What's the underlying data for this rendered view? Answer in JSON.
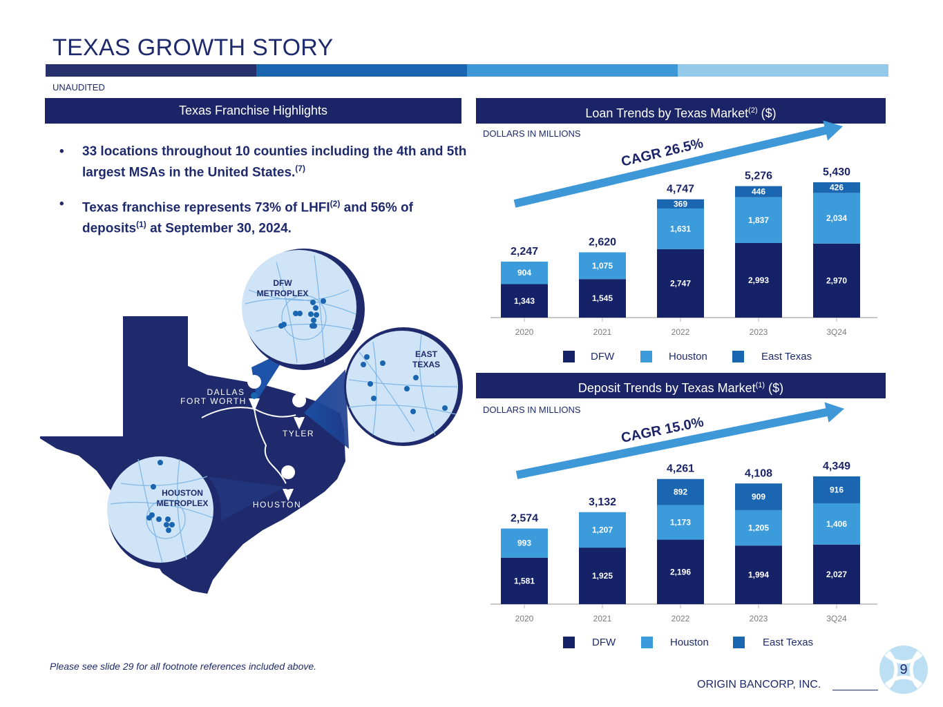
{
  "title": "TEXAS GROWTH STORY",
  "subtitle": "UNAUDITED",
  "colors": {
    "dfw": "#152267",
    "houston": "#3c9bdb",
    "east_texas": "#1b66b1",
    "navy": "#1a2466",
    "band": [
      "#26306a",
      "#1a65b0",
      "#3e97d7",
      "#94c9ea"
    ]
  },
  "left_panel": {
    "header": "Texas Franchise Highlights",
    "bullets": [
      {
        "text": "33 locations throughout 10 counties including the 4th and 5th largest MSAs in the United States.",
        "sup": "(7)"
      },
      {
        "text_a": "Texas franchise represents 73% of LHFI",
        "sup_a": "(2)",
        "text_b": " and 56% of deposits",
        "sup_b": "(1)",
        "text_c": " at September 30, 2024."
      }
    ],
    "bullet_char": "•",
    "map": {
      "cities": [
        "DALLAS",
        "FORT WORTH",
        "TYLER",
        "HOUSTON"
      ],
      "callouts": [
        {
          "line1": "DFW",
          "line2": "METROPLEX"
        },
        {
          "line1": "EAST",
          "line2": "TEXAS"
        },
        {
          "line1": "HOUSTON",
          "line2": "METROPLEX"
        }
      ]
    }
  },
  "loan_panel": {
    "header": "Loan Trends by Texas Market",
    "header_sup": "(2)",
    "header_suffix": " ($)",
    "unit": "DOLLARS IN MILLIONS",
    "cagr": "CAGR 26.5%",
    "legend": [
      "DFW",
      "Houston",
      "East Texas"
    ]
  },
  "deposit_panel": {
    "header": "Deposit Trends by Texas Market",
    "header_sup": "(1)",
    "header_suffix": " ($)",
    "unit": "DOLLARS IN MILLIONS",
    "cagr": "CAGR 15.0%",
    "legend": [
      "DFW",
      "Houston",
      "East Texas"
    ]
  },
  "chart_data": [
    {
      "type": "bar",
      "stacked": true,
      "title": "Loan Trends by Texas Market ($)",
      "categories": [
        "2020",
        "2021",
        "2022",
        "2023",
        "3Q24"
      ],
      "series": [
        {
          "name": "DFW",
          "values": [
            1343,
            1545,
            2747,
            2993,
            2970
          ],
          "labels": [
            "1,343",
            "1,545",
            "2,747",
            "2,993",
            "2,970"
          ]
        },
        {
          "name": "Houston",
          "values": [
            904,
            1075,
            1631,
            1837,
            2034
          ],
          "labels": [
            "904",
            "1,075",
            "1,631",
            "1,837",
            "2,034"
          ]
        },
        {
          "name": "East Texas",
          "values": [
            0,
            0,
            369,
            446,
            426
          ],
          "labels": [
            "",
            "",
            "369",
            "446",
            "426"
          ]
        }
      ],
      "totals": [
        "2,247",
        "2,620",
        "4,747",
        "5,276",
        "5,430"
      ],
      "ylim": [
        0,
        5430
      ]
    },
    {
      "type": "bar",
      "stacked": true,
      "title": "Deposit Trends by Texas Market ($)",
      "categories": [
        "2020",
        "2021",
        "2022",
        "2023",
        "3Q24"
      ],
      "series": [
        {
          "name": "DFW",
          "values": [
            1581,
            1925,
            2196,
            1994,
            2027
          ],
          "labels": [
            "1,581",
            "1,925",
            "2,196",
            "1,994",
            "2,027"
          ]
        },
        {
          "name": "Houston",
          "values": [
            993,
            1207,
            1173,
            1205,
            1406
          ],
          "labels": [
            "993",
            "1,207",
            "1,173",
            "1,205",
            "1,406"
          ]
        },
        {
          "name": "East Texas",
          "values": [
            0,
            0,
            892,
            909,
            916
          ],
          "labels": [
            "",
            "",
            "892",
            "909",
            "916"
          ]
        }
      ],
      "totals": [
        "2,574",
        "3,132",
        "4,261",
        "4,108",
        "4,349"
      ],
      "ylim": [
        0,
        4349
      ]
    }
  ],
  "footnote": "Please see slide 29 for all footnote references included above.",
  "company": "ORIGIN BANCORP, INC.",
  "page_number": "9"
}
